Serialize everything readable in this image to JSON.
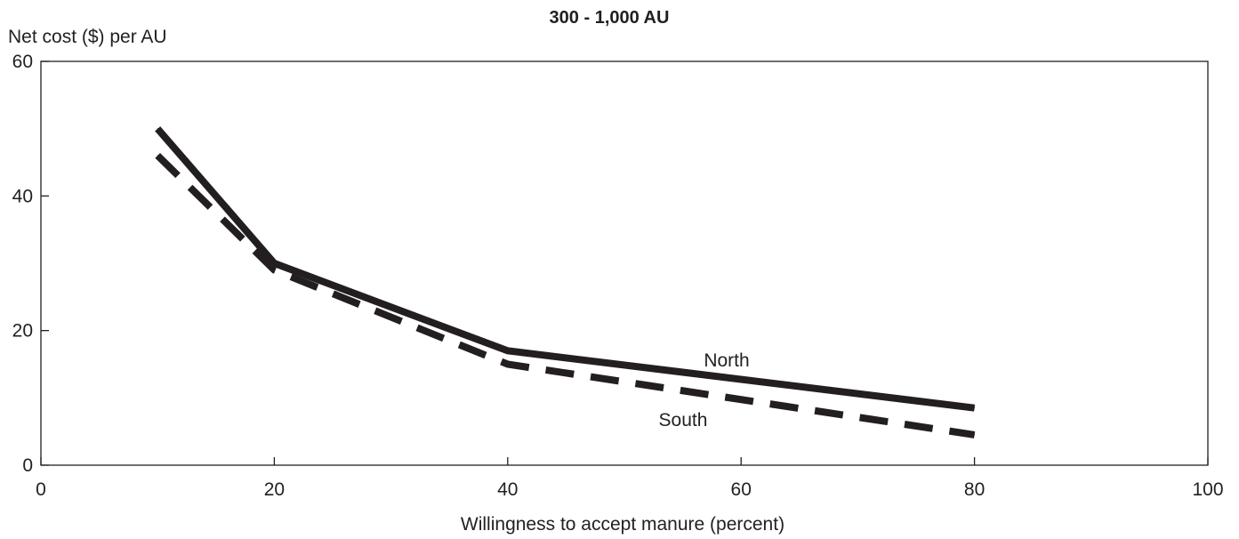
{
  "chart_data": {
    "type": "line",
    "title": "300 - 1,000 AU",
    "xlabel": "Willingness to accept manure (percent)",
    "ylabel": "Net cost ($) per AU",
    "xlim": [
      0,
      100
    ],
    "ylim": [
      0,
      60
    ],
    "x_ticks": [
      "0",
      "20",
      "40",
      "60",
      "80",
      "100"
    ],
    "y_ticks": [
      "0",
      "20",
      "40",
      "60"
    ],
    "grid": false,
    "line_color": "#231f20",
    "series": [
      {
        "name": "North",
        "style": "solid",
        "x": [
          10,
          20,
          40,
          80
        ],
        "y": [
          50,
          30,
          17,
          8.5
        ]
      },
      {
        "name": "South",
        "style": "dashed",
        "x": [
          10,
          20,
          40,
          80
        ],
        "y": [
          46,
          29,
          15,
          4.5
        ]
      }
    ]
  }
}
